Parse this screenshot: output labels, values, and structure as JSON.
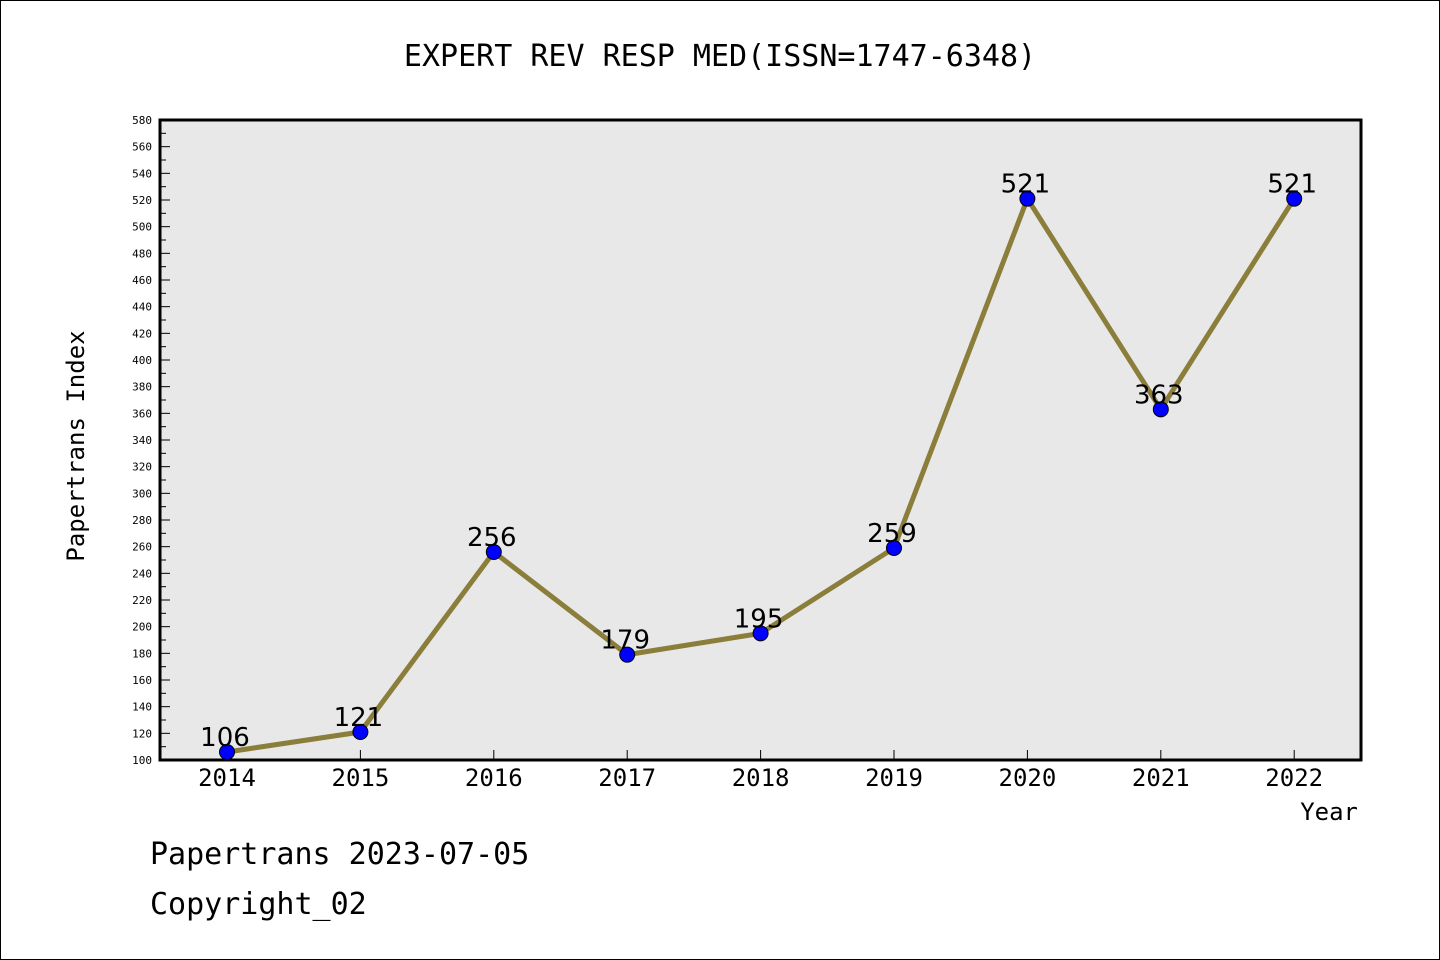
{
  "chart_data": {
    "type": "line",
    "title": "EXPERT REV RESP MED(ISSN=1747-6348)",
    "xlabel": "Year",
    "ylabel": "Papertrans Index",
    "x": [
      "2014",
      "2015",
      "2016",
      "2017",
      "2018",
      "2019",
      "2020",
      "2021",
      "2022"
    ],
    "values": [
      106,
      121,
      256,
      179,
      195,
      259,
      521,
      363,
      521
    ],
    "ylim": [
      100,
      580
    ],
    "ytick_step": 20,
    "grid": false,
    "line_color": "#8B7D3A",
    "marker_color": "#0000FF",
    "plot_background": "#E8E8E8"
  },
  "footer": {
    "date_line": "Papertrans 2023-07-05",
    "copyright": "Copyright_02"
  }
}
